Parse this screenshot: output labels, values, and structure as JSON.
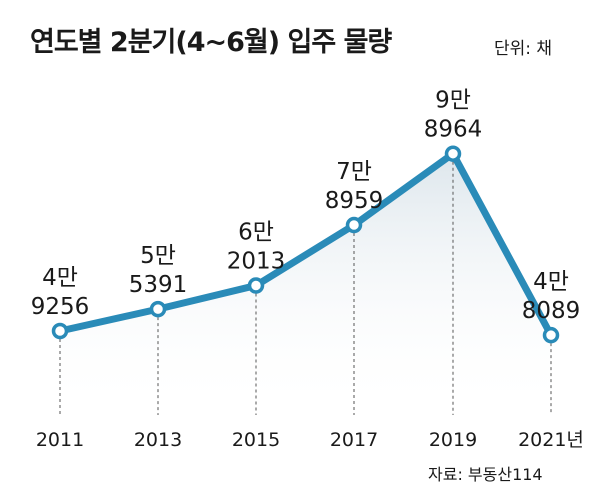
{
  "header": {
    "title": "연도별 2분기(4~6월) 입주 물량",
    "unit": "단위: 채"
  },
  "footer": {
    "source": "자료: 부동산114"
  },
  "colors": {
    "line": "#2a8bb8",
    "marker_fill": "#ffffff",
    "area_top": "#dde6ec",
    "gridline": "#555555"
  },
  "chart_data": {
    "type": "line",
    "title": "연도별 2분기(4~6월) 입주 물량",
    "ylabel": "단위: 채",
    "categories": [
      "2011",
      "2013",
      "2015",
      "2017",
      "2019",
      "2021년"
    ],
    "values": [
      49256,
      55391,
      62013,
      78959,
      98964,
      48089
    ],
    "value_labels": [
      [
        "4만",
        "9256"
      ],
      [
        "5만",
        "5391"
      ],
      [
        "6만",
        "2013"
      ],
      [
        "7만",
        "8959"
      ],
      [
        "9만",
        "8964"
      ],
      [
        "4만",
        "8089"
      ]
    ],
    "grid": "vertical dashed drop lines",
    "legend": "none"
  }
}
